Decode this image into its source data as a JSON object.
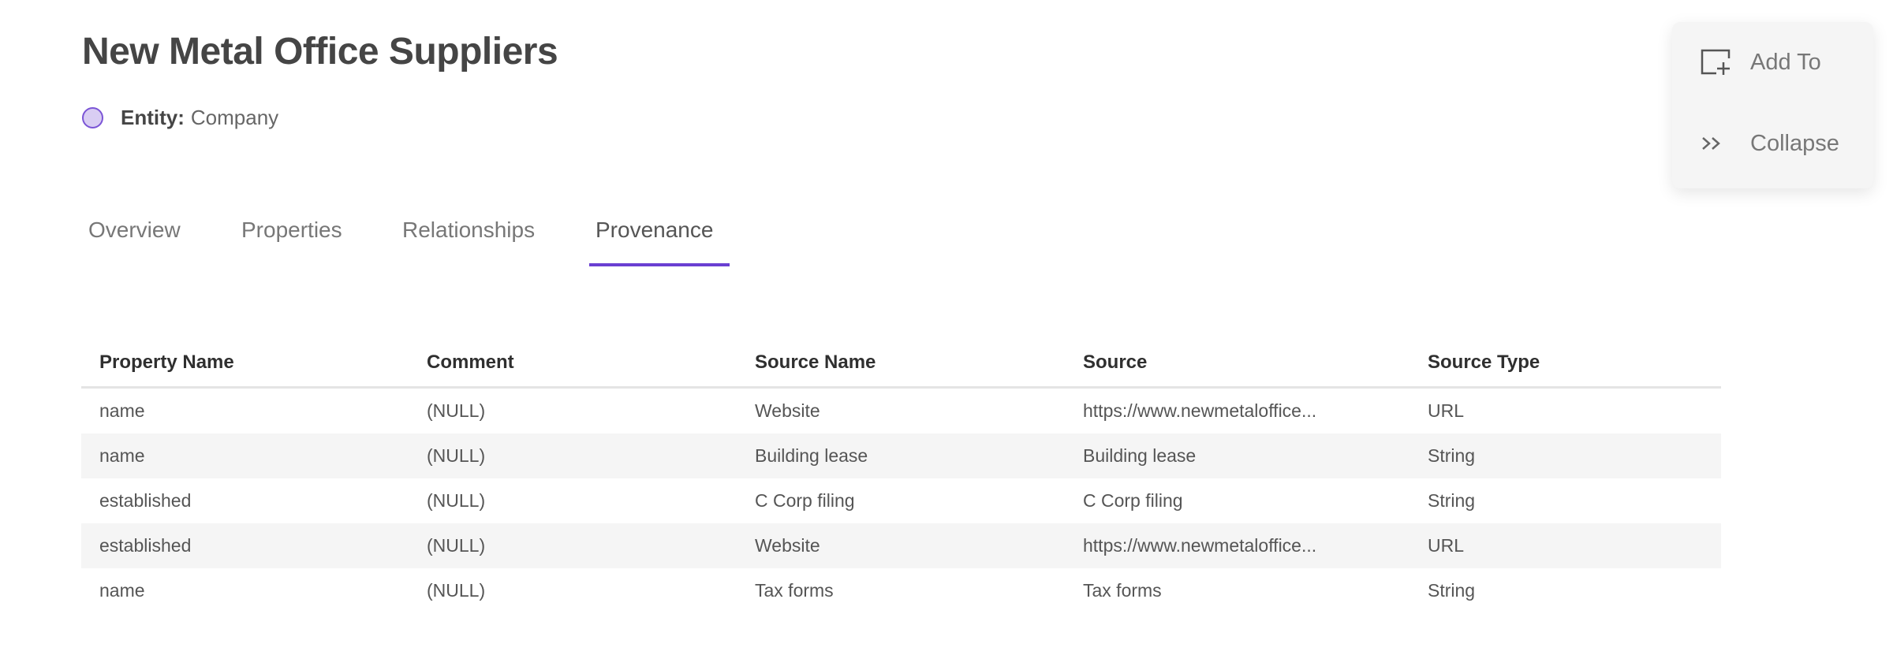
{
  "header": {
    "title": "New Metal Office Suppliers",
    "entity_label": "Entity:",
    "entity_value": "Company",
    "entity_color": "#d9cdf3"
  },
  "tabs": [
    {
      "label": "Overview",
      "active": false
    },
    {
      "label": "Properties",
      "active": false
    },
    {
      "label": "Relationships",
      "active": false
    },
    {
      "label": "Provenance",
      "active": true
    }
  ],
  "accent_color": "#6a3fd2",
  "table": {
    "columns": [
      "Property Name",
      "Comment",
      "Source Name",
      "Source",
      "Source Type"
    ],
    "rows": [
      [
        "name",
        "(NULL)",
        "Website",
        "https://www.newmetaloffice...",
        "URL"
      ],
      [
        "name",
        "(NULL)",
        "Building lease",
        "Building lease",
        "String"
      ],
      [
        "established",
        "(NULL)",
        "C Corp filing",
        "C Corp filing",
        "String"
      ],
      [
        "established",
        "(NULL)",
        "Website",
        "https://www.newmetaloffice...",
        "URL"
      ],
      [
        "name",
        "(NULL)",
        "Tax forms",
        "Tax forms",
        "String"
      ]
    ]
  },
  "actions": [
    {
      "label": "Add To",
      "icon": "add-to-collection-icon"
    },
    {
      "label": "Collapse",
      "icon": "double-chevron-right-icon"
    }
  ]
}
